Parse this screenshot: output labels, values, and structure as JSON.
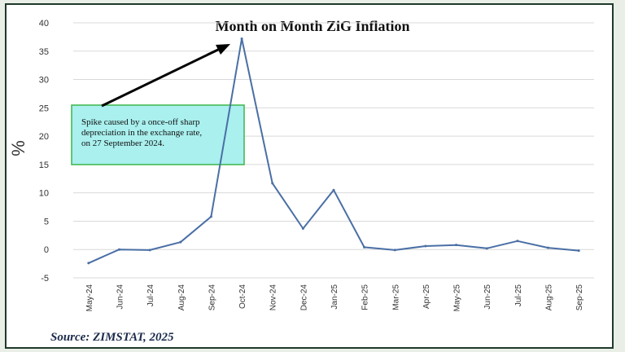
{
  "chart_data": {
    "type": "line",
    "title": "Month on Month ZiG Inflation",
    "ylabel": "%",
    "xlabel": "",
    "categories": [
      "May-24",
      "Jun-24",
      "Jul-24",
      "Aug-24",
      "Sep-24",
      "Oct-24",
      "Nov-24",
      "Dec-24",
      "Jan-25",
      "Feb-25",
      "Mar-25",
      "Apr-25",
      "May-25",
      "Jun-25",
      "Jul-25",
      "Aug-25",
      "Sep-25"
    ],
    "values": [
      -2.4,
      0.0,
      -0.1,
      1.3,
      5.8,
      37.2,
      11.7,
      3.7,
      10.5,
      0.4,
      -0.1,
      0.6,
      0.8,
      0.2,
      1.5,
      0.3,
      -0.2
    ],
    "ylim": [
      -5,
      40
    ],
    "yticks": [
      "40",
      "35",
      "30",
      "25",
      "20",
      "15",
      "10",
      "5",
      "0",
      "-5"
    ],
    "ytick_values": [
      40,
      35,
      30,
      25,
      20,
      15,
      10,
      5,
      0,
      -5
    ],
    "grid": true,
    "line_color": "#4a6fa5",
    "annotation": {
      "lines": [
        "Spike caused by a once-off sharp",
        "depreciation in the exchange rate,",
        "on 27 September 2024."
      ],
      "box_color": "#a9f0ee",
      "box_border": "#3bb54a"
    },
    "source": "Source: ZIMSTAT, 2025"
  }
}
